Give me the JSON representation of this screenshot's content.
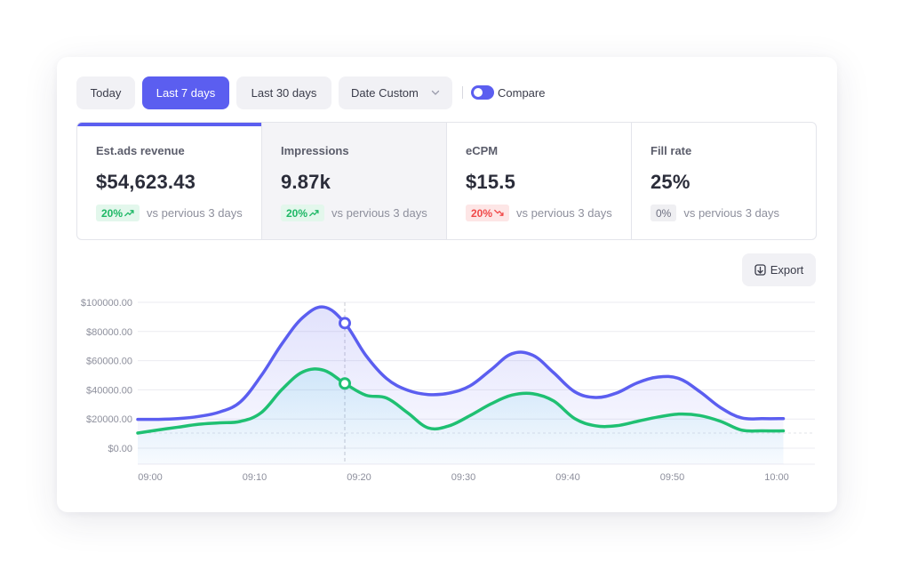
{
  "toolbar": {
    "today": "Today",
    "last7": "Last 7 days",
    "last30": "Last 30 days",
    "custom": "Date Custom",
    "compare": "Compare",
    "compare_on": true
  },
  "metrics": [
    {
      "label": "Est.ads revenue",
      "value": "$54,623.43",
      "change": "20%",
      "trend": "up",
      "compare": "vs pervious 3 days"
    },
    {
      "label": "Impressions",
      "value": "9.87k",
      "change": "20%",
      "trend": "up",
      "compare": "vs pervious 3 days"
    },
    {
      "label": "eCPM",
      "value": "$15.5",
      "change": "20%",
      "trend": "down",
      "compare": "vs pervious 3 days"
    },
    {
      "label": "Fill rate",
      "value": "25%",
      "change": "0%",
      "trend": "flat",
      "compare": "vs pervious 3 days"
    }
  ],
  "export_label": "Export",
  "colors": {
    "accent": "#5b5ef0",
    "green": "#1fc072",
    "up": "#1fb866",
    "down": "#f04949"
  },
  "chart_data": {
    "type": "line",
    "x": [
      "09:00",
      "09:02",
      "09:04",
      "09:06",
      "09:08",
      "09:10",
      "09:12",
      "09:14",
      "09:16",
      "09:18",
      "09:20",
      "09:22",
      "09:24",
      "09:26",
      "09:28",
      "09:30",
      "09:32",
      "09:34",
      "09:36",
      "09:38",
      "09:40",
      "09:42",
      "09:44",
      "09:46",
      "09:48",
      "09:50",
      "09:52",
      "09:54",
      "09:56",
      "09:58",
      "10:00",
      "10:02"
    ],
    "xticks": [
      "09:00",
      "09:10",
      "09:20",
      "09:30",
      "09:40",
      "09:50",
      "10:00"
    ],
    "yticks": [
      "$100000.00",
      "$80000.00",
      "$60000.00",
      "$40000.00",
      "$20000.00",
      "$0.00"
    ],
    "ylim": [
      0,
      100000
    ],
    "series": [
      {
        "values": [
          10000,
          10000,
          10500,
          12000,
          15000,
          22000,
          40000,
          62000,
          80000,
          87000,
          76000,
          54000,
          38000,
          30000,
          27000,
          28000,
          33000,
          44000,
          55000,
          54000,
          42000,
          29000,
          25000,
          28000,
          35000,
          39000,
          38000,
          29000,
          18000,
          11000,
          10500,
          10500
        ]
      },
      {
        "values": [
          0,
          2000,
          4000,
          6000,
          7000,
          8000,
          14000,
          30000,
          42000,
          43000,
          34000,
          26000,
          24000,
          14000,
          3500,
          5000,
          12000,
          20000,
          26000,
          27000,
          22000,
          10000,
          5000,
          5000,
          8000,
          11000,
          13000,
          12000,
          8000,
          2000,
          1500,
          1500
        ]
      }
    ],
    "hover_index": 10,
    "grid": true
  }
}
